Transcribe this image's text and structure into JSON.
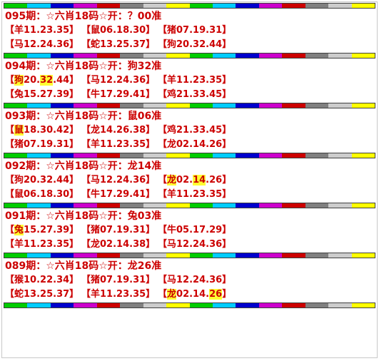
{
  "bar_colors": [
    "#00cc00",
    "#00ccff",
    "#0000cc",
    "#cc00cc",
    "#cc0000",
    "#808080",
    "#cccccc",
    "#ffff00",
    "#00cc00",
    "#00ccff",
    "#0000cc",
    "#cc00cc",
    "#cc0000",
    "#808080",
    "#cccccc",
    "#ffff00"
  ],
  "highlight_color": "#ffff33",
  "title_color": "#cc0000",
  "bracket_left": "【",
  "bracket_right": "】",
  "blocks": [
    {
      "title": "095期：☆六肖18码☆开：？00准",
      "rows": [
        [
          {
            "parts": [
              {
                "t": "羊11.23.35"
              }
            ]
          },
          {
            "parts": [
              {
                "t": "鼠06.18.30"
              }
            ]
          },
          {
            "parts": [
              {
                "t": "猪07.19.31"
              }
            ]
          }
        ],
        [
          {
            "parts": [
              {
                "t": "马12.24.36"
              }
            ]
          },
          {
            "parts": [
              {
                "t": "蛇13.25.37"
              }
            ]
          },
          {
            "parts": [
              {
                "t": "狗20.32.44"
              }
            ]
          }
        ]
      ]
    },
    {
      "title": "094期：☆六肖18码☆开：狗32准",
      "rows": [
        [
          {
            "parts": [
              {
                "t": "狗",
                "hl": true
              },
              {
                "t": "20."
              },
              {
                "t": "32",
                "hl": true
              },
              {
                "t": ".44"
              }
            ]
          },
          {
            "parts": [
              {
                "t": "马12.24.36"
              }
            ]
          },
          {
            "parts": [
              {
                "t": "羊11.23.35"
              }
            ]
          }
        ],
        [
          {
            "parts": [
              {
                "t": "兔15.27.39"
              }
            ]
          },
          {
            "parts": [
              {
                "t": "牛17.29.41"
              }
            ]
          },
          {
            "parts": [
              {
                "t": "鸡21.33.45"
              }
            ]
          }
        ]
      ]
    },
    {
      "title": "093期：☆六肖18码☆开：鼠06准",
      "rows": [
        [
          {
            "parts": [
              {
                "t": "鼠",
                "hl": true
              },
              {
                "t": "18.30.42"
              }
            ]
          },
          {
            "parts": [
              {
                "t": "龙14.26.38"
              }
            ]
          },
          {
            "parts": [
              {
                "t": "鸡21.33.45"
              }
            ]
          }
        ],
        [
          {
            "parts": [
              {
                "t": "猪07.19.31"
              }
            ]
          },
          {
            "parts": [
              {
                "t": "羊11.23.35"
              }
            ]
          },
          {
            "parts": [
              {
                "t": "龙02.14.26"
              }
            ]
          }
        ]
      ]
    },
    {
      "title": "092期：☆六肖18码☆开：龙14准",
      "rows": [
        [
          {
            "parts": [
              {
                "t": "狗20.32.44"
              }
            ]
          },
          {
            "parts": [
              {
                "t": "马12.24.36"
              }
            ]
          },
          {
            "parts": [
              {
                "t": "龙",
                "hl": true
              },
              {
                "t": "02."
              },
              {
                "t": "14",
                "hl": true
              },
              {
                "t": ".26"
              }
            ]
          }
        ],
        [
          {
            "parts": [
              {
                "t": "鼠06.18.30"
              }
            ]
          },
          {
            "parts": [
              {
                "t": "牛17.29.41"
              }
            ]
          },
          {
            "parts": [
              {
                "t": "羊11.23.35"
              }
            ]
          }
        ]
      ]
    },
    {
      "title": "091期：☆六肖18码☆开：兔03准",
      "rows": [
        [
          {
            "parts": [
              {
                "t": "兔",
                "hl": true
              },
              {
                "t": "15.27.39"
              }
            ]
          },
          {
            "parts": [
              {
                "t": "猪07.19.31"
              }
            ]
          },
          {
            "parts": [
              {
                "t": "牛05.17.29"
              }
            ]
          }
        ],
        [
          {
            "parts": [
              {
                "t": "羊11.23.35"
              }
            ]
          },
          {
            "parts": [
              {
                "t": "龙02.14.38"
              }
            ]
          },
          {
            "parts": [
              {
                "t": "马12.24.36"
              }
            ]
          }
        ]
      ]
    },
    {
      "title": "089期：☆六肖18码☆开：龙26准",
      "rows": [
        [
          {
            "parts": [
              {
                "t": "猴10.22.34"
              }
            ]
          },
          {
            "parts": [
              {
                "t": "猪07.19.31"
              }
            ]
          },
          {
            "parts": [
              {
                "t": "马12.24.36"
              }
            ]
          }
        ],
        [
          {
            "parts": [
              {
                "t": "蛇13.25.37"
              }
            ]
          },
          {
            "parts": [
              {
                "t": "羊11.23.35"
              }
            ]
          },
          {
            "parts": [
              {
                "t": "龙",
                "hl": true
              },
              {
                "t": "02.14."
              },
              {
                "t": "26",
                "hl": true
              }
            ]
          }
        ]
      ]
    }
  ]
}
